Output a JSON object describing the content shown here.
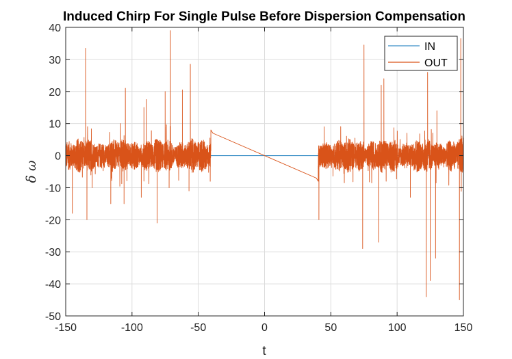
{
  "chart_data": {
    "type": "line",
    "title": "Induced Chirp For Single Pulse Before Dispersion Compensation",
    "xlabel": "t",
    "ylabel": "δ ω",
    "xlim": [
      -150,
      150
    ],
    "ylim": [
      -50,
      40
    ],
    "xticks": [
      -150,
      -100,
      -50,
      0,
      50,
      100,
      150
    ],
    "yticks": [
      -50,
      -40,
      -30,
      -20,
      -10,
      0,
      10,
      20,
      30,
      40
    ],
    "grid": true,
    "legend_position": "top-right",
    "noise_ranges": [
      [
        -150,
        -40.5
      ],
      [
        40.5,
        150
      ]
    ],
    "noise_amplitude": 3,
    "series": [
      {
        "name": "IN",
        "color": "#3a8fc7",
        "points": [
          [
            -150,
            0
          ],
          [
            150,
            0
          ]
        ]
      },
      {
        "name": "OUT",
        "color": "#d95319",
        "linear_segment": [
          [
            -40.5,
            8
          ],
          [
            -39,
            7
          ],
          [
            0,
            0
          ],
          [
            39,
            -7
          ],
          [
            40.5,
            -8
          ]
        ],
        "spikes": [
          [
            -145,
            -18
          ],
          [
            -135,
            33.5
          ],
          [
            -134,
            -20
          ],
          [
            -130,
            -10
          ],
          [
            -116,
            -15
          ],
          [
            -106,
            -15
          ],
          [
            -105,
            21
          ],
          [
            -93,
            -13
          ],
          [
            -91,
            15
          ],
          [
            -89,
            17.5
          ],
          [
            -81,
            -21
          ],
          [
            -75,
            20
          ],
          [
            -72,
            -10
          ],
          [
            -71,
            39
          ],
          [
            -62,
            20.5
          ],
          [
            -57,
            -11
          ],
          [
            -56,
            28.5
          ],
          [
            -41,
            -8
          ],
          [
            41,
            -20
          ],
          [
            45,
            9
          ],
          [
            74,
            -29
          ],
          [
            75,
            34.5
          ],
          [
            86,
            -27
          ],
          [
            88,
            22
          ],
          [
            90,
            24
          ],
          [
            110,
            -13
          ],
          [
            122,
            -44
          ],
          [
            123,
            26
          ],
          [
            125,
            -39
          ],
          [
            129,
            -32
          ],
          [
            130,
            14
          ],
          [
            147,
            -45
          ],
          [
            148,
            36.5
          ]
        ]
      }
    ]
  }
}
